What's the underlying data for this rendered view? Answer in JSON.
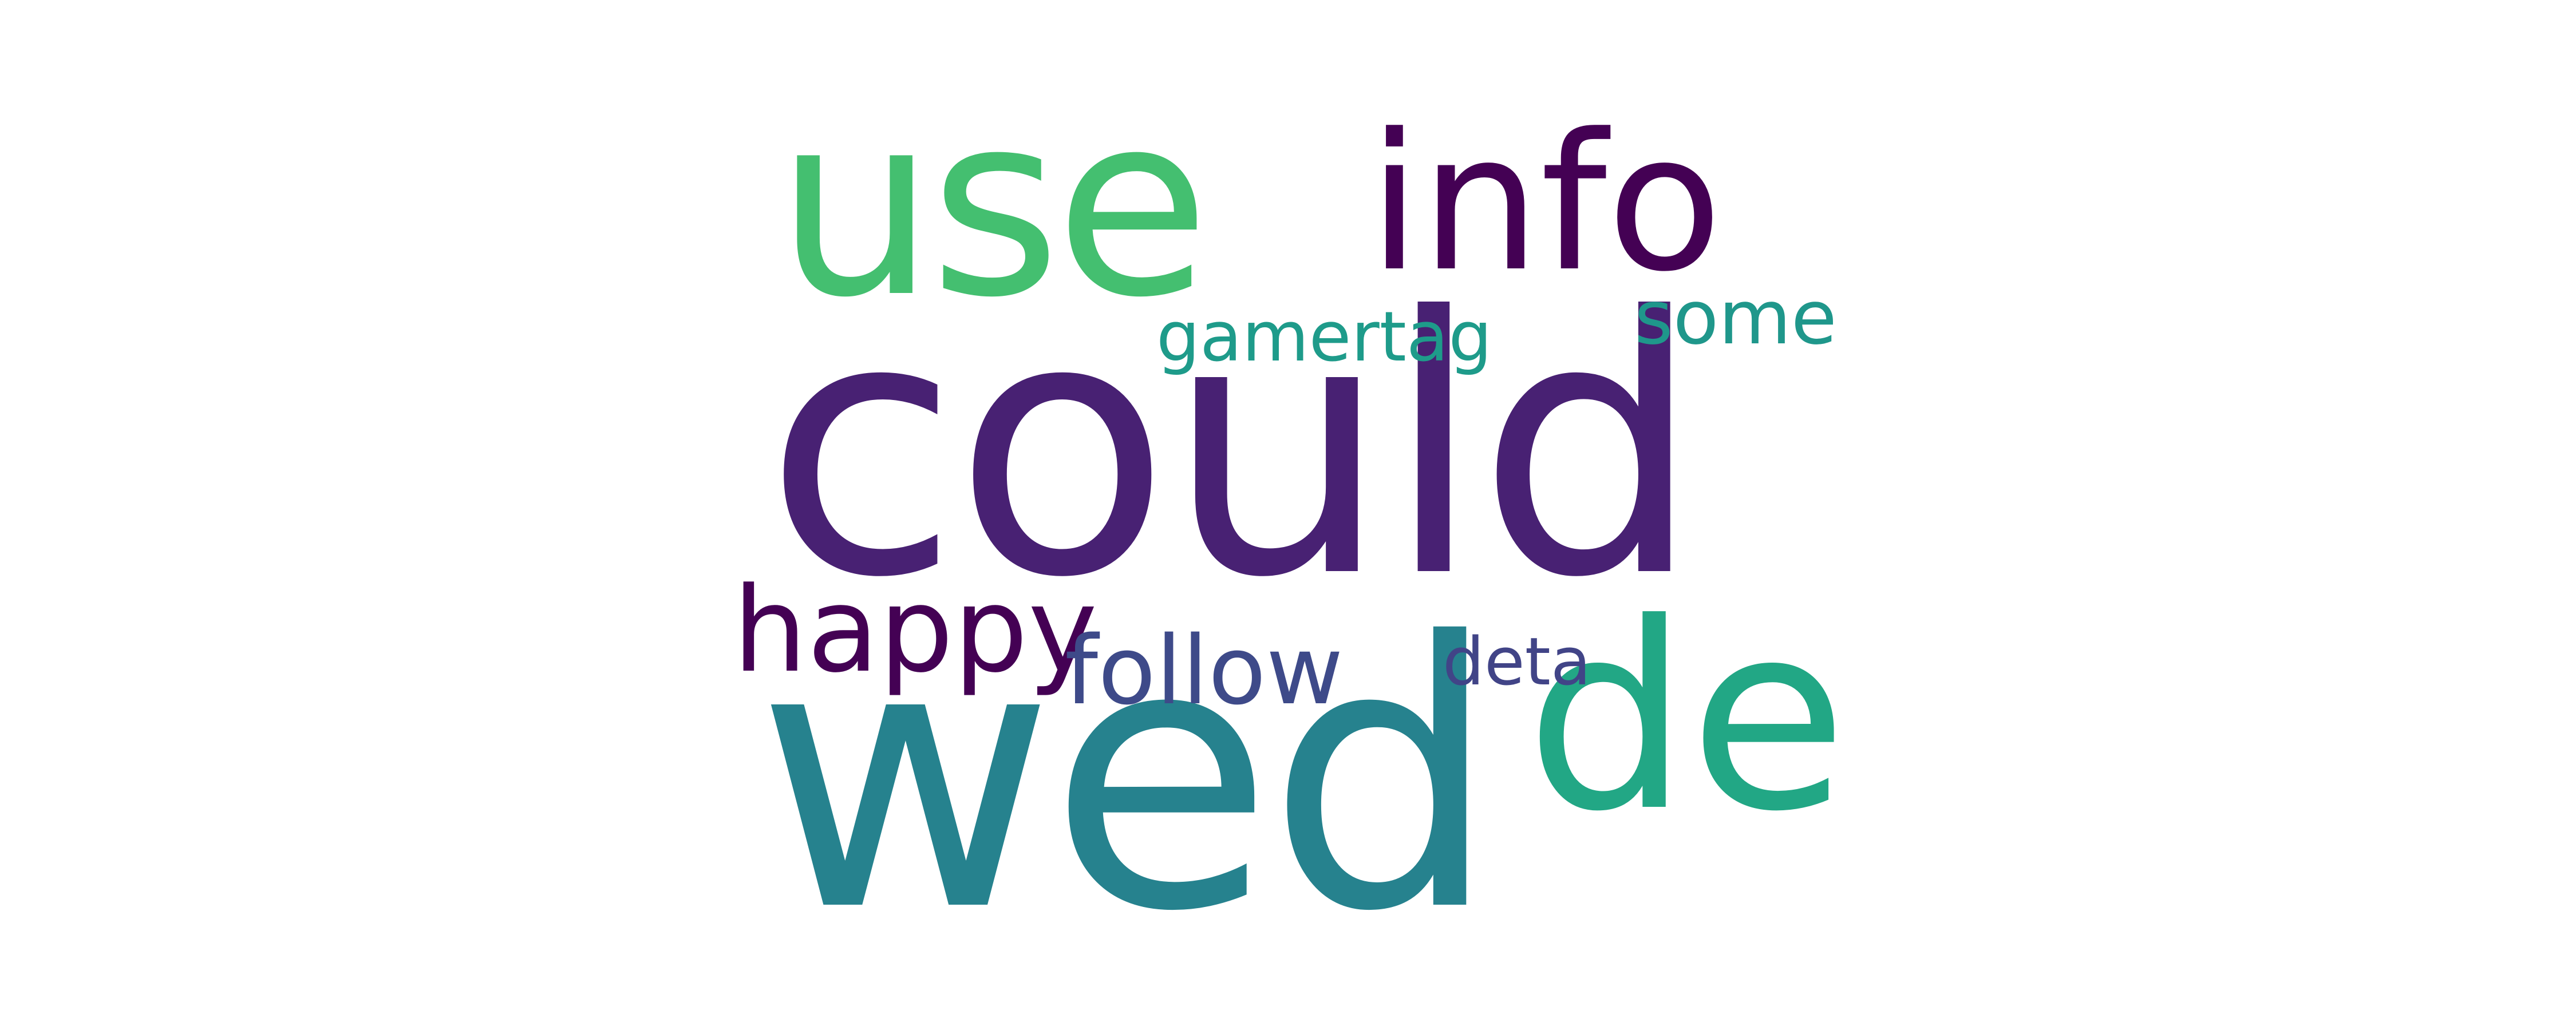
{
  "words": [
    {
      "text": "could",
      "color": "#482173"
    },
    {
      "text": "wed",
      "color": "#26828e"
    },
    {
      "text": "use",
      "color": "#44bf70"
    },
    {
      "text": "de",
      "color": "#22a785"
    },
    {
      "text": "info",
      "color": "#440154"
    },
    {
      "text": "happy",
      "color": "#440154"
    },
    {
      "text": "follow",
      "color": "#3e4a89"
    },
    {
      "text": "gamertag",
      "color": "#1e9b8a"
    },
    {
      "text": "some",
      "color": "#1f978b"
    },
    {
      "text": "deta",
      "color": "#414487"
    }
  ]
}
